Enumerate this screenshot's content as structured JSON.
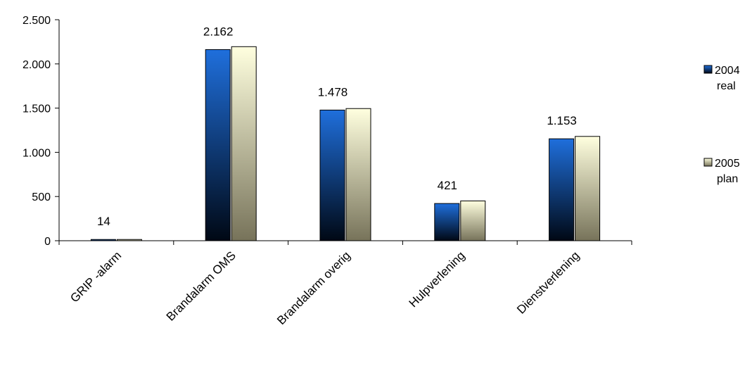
{
  "chart_data": {
    "type": "bar",
    "categories": [
      "GRIP -alarm",
      "Brandalarm OMS",
      "Brandalarm overig",
      "Hulpverlening",
      "Dienstverlening"
    ],
    "series": [
      {
        "name": [
          "2004",
          "real"
        ],
        "values": [
          14,
          2162,
          1478,
          421,
          1153
        ],
        "color_top": "#1f6fdc",
        "color_bottom": "#000814"
      },
      {
        "name": [
          "2005",
          "plan"
        ],
        "values": [
          14,
          2195,
          1495,
          450,
          1180
        ],
        "color_top": "#ffffdf",
        "color_bottom": "#77735a"
      }
    ],
    "data_labels": [
      "14",
      "2.162",
      "1.478",
      "421",
      "1.153"
    ],
    "ylim": [
      0,
      2500
    ],
    "yticks": [
      0,
      500,
      1000,
      1500,
      2000,
      2500
    ],
    "ytick_labels": [
      "0",
      "500",
      "1.000",
      "1.500",
      "2.000",
      "2.500"
    ],
    "title": "",
    "xlabel": "",
    "ylabel": "",
    "grid": false,
    "legend_position": "right"
  }
}
